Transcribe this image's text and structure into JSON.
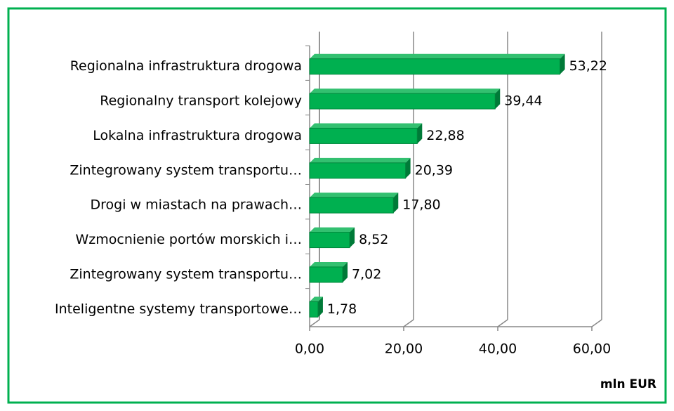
{
  "chart_data": {
    "type": "bar",
    "orientation": "horizontal",
    "categories": [
      "Regionalna infrastruktura drogowa",
      "Regionalny transport kolejowy",
      "Lokalna infrastruktura drogowa",
      "Zintegrowany system transportu…",
      "Drogi w miastach na prawach…",
      "Wzmocnienie portów morskich i…",
      "Zintegrowany system transportu…",
      "Inteligentne systemy transportowe…"
    ],
    "values": [
      53.22,
      39.44,
      22.88,
      20.39,
      17.8,
      8.52,
      7.02,
      1.78
    ],
    "value_labels": [
      "53,22",
      "39,44",
      "22,88",
      "20,39",
      "17,80",
      "8,52",
      "7,02",
      "1,78"
    ],
    "color": "#00b050",
    "xlim": [
      0,
      60
    ],
    "xticks": [
      {
        "value": 0,
        "label": "0,00"
      },
      {
        "value": 20,
        "label": "20,00"
      },
      {
        "value": 40,
        "label": "40,00"
      },
      {
        "value": 60,
        "label": "60,00"
      }
    ],
    "x_label": "mln EUR",
    "grid": true
  }
}
